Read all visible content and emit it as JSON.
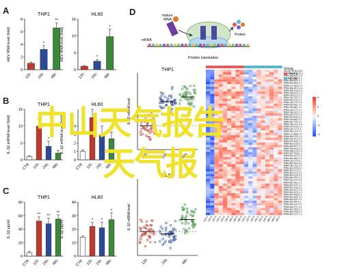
{
  "panels": {
    "A": {
      "letter": "A"
    },
    "B": {
      "letter": "B"
    },
    "C": {
      "letter": "C"
    },
    "D": {
      "letter": "D"
    }
  },
  "overlay": {
    "line1": "中山天气报告",
    "line2": "天气报"
  },
  "chart_data": [
    {
      "type": "bar",
      "panel": "A",
      "title": "THP1",
      "ylabel": "HEV RNA level (fold)",
      "categories": [
        "12h",
        "24h",
        "48h"
      ],
      "values": [
        1.0,
        3.2,
        6.6
      ],
      "errors": [
        0.2,
        0.6,
        0.8
      ],
      "annotations": [
        "",
        "*",
        "**"
      ],
      "yticks": [
        0,
        2,
        4,
        6,
        8
      ],
      "ylim": [
        0,
        8
      ],
      "colors": [
        "#c0392b",
        "#2c4a9b",
        "#3a8a3a"
      ]
    },
    {
      "type": "bar",
      "panel": "A",
      "title": "HL60",
      "ylabel": "HEV RNA level (fold)",
      "categories": [
        "12h",
        "24h",
        "48h"
      ],
      "values": [
        1.0,
        2.5,
        9.8
      ],
      "errors": [
        0.2,
        0.5,
        2.2
      ],
      "annotations": [
        "",
        "*",
        "*"
      ],
      "yticks": [
        0,
        5,
        10,
        15
      ],
      "ylim": [
        0,
        15
      ],
      "colors": [
        "#c0392b",
        "#2c4a9b",
        "#3a8a3a"
      ]
    },
    {
      "type": "bar",
      "panel": "B",
      "title": "THP1",
      "ylabel": "IL-1β mRNA level (fold)",
      "categories": [
        "CTR",
        "12h",
        "24h",
        "48h"
      ],
      "values": [
        1.0,
        10.0,
        4.0,
        2.0
      ],
      "errors": [
        0.2,
        2.0,
        1.5,
        0.8
      ],
      "annotations": [
        "",
        "*",
        "*",
        ""
      ],
      "yticks": [
        0,
        5,
        10,
        15
      ],
      "ylim": [
        0,
        15
      ],
      "colors": [
        "#ffffff",
        "#c0392b",
        "#2c4a9b",
        "#3a8a3a"
      ]
    },
    {
      "type": "bar",
      "panel": "B",
      "title": "HL60",
      "ylabel": "IL-1β mRNA level (fold)",
      "categories": [
        "CTR",
        "12h",
        "24h",
        "48h"
      ],
      "values": [
        1.0,
        5.0,
        3.0,
        2.5
      ],
      "errors": [
        0.2,
        1.0,
        1.0,
        0.8
      ],
      "annotations": [
        "",
        "",
        "",
        ""
      ],
      "yticks": [
        0,
        1,
        2,
        3,
        4
      ],
      "ylim": [
        0,
        6
      ],
      "colors": [
        "#ffffff",
        "#c0392b",
        "#2c4a9b",
        "#3a8a3a"
      ]
    },
    {
      "type": "bar",
      "panel": "C",
      "title": "THP1",
      "ylabel": "IL-1β pg/ml",
      "categories": [
        "CTR",
        "12h",
        "24h",
        "48h"
      ],
      "values": [
        5,
        52,
        48,
        55
      ],
      "errors": [
        2,
        6,
        8,
        6
      ],
      "annotations": [
        "",
        "**",
        "**",
        "**"
      ],
      "yticks": [
        0,
        20,
        40,
        60,
        80
      ],
      "ylim": [
        0,
        80
      ],
      "colors": [
        "#ffffff",
        "#c0392b",
        "#2c4a9b",
        "#3a8a3a"
      ]
    },
    {
      "type": "bar",
      "panel": "C",
      "title": "HL60",
      "ylabel": "IL-1β pg/ml",
      "categories": [
        "CTR",
        "12h",
        "24h",
        "48h"
      ],
      "values": [
        14,
        22,
        21,
        27
      ],
      "errors": [
        1,
        3,
        4,
        5
      ],
      "annotations": [
        "",
        "*",
        "*",
        "*"
      ],
      "yticks": [
        0,
        10,
        20,
        30,
        40
      ],
      "ylim": [
        0,
        40
      ],
      "colors": [
        "#ffffff",
        "#c0392b",
        "#2c4a9b",
        "#3a8a3a"
      ]
    },
    {
      "type": "scatter",
      "panel": "D",
      "title": "THP1",
      "ylabel": "IL-1β mRNA level",
      "categories": [
        "12h",
        "24h",
        "48h"
      ],
      "medians": [
        1.0,
        2.0,
        2.2
      ],
      "colors": [
        "#c0392b",
        "#2c4a9b",
        "#3a8a3a"
      ]
    },
    {
      "type": "scatter",
      "panel": "D",
      "title": "HL60",
      "ylabel": "IL-1β mRNA level",
      "categories": [
        "12h",
        "24h",
        "48h"
      ],
      "medians": [
        1.0,
        0.9,
        1.5
      ],
      "colors": [
        "#c0392b",
        "#2c4a9b",
        "#3a8a3a"
      ]
    },
    {
      "type": "heatmap",
      "panel": "D",
      "legend_title": "Group",
      "groups": [
        "THP-1",
        "HL-60"
      ],
      "group_colors": [
        "#e05b5b",
        "#5bb5c8"
      ],
      "scale_ticks": [
        "4",
        "2",
        "0",
        "-2",
        "-4"
      ],
      "row_labels": [
        "hsa-mir-95-5p-GGC",
        "tRNA-Ala-GCA-14-1",
        "tRNA-Arg-ACG-1-2",
        "tRNA-Ala-CAG-1-1",
        "tRNA-Ala-AGC-1-1",
        "tRNA-Ala-AAG-1-1",
        "tRNA-Leu-GCG-1-1",
        "tRNA-Asp-GCC-1-1",
        "tRNA-Asp-TCG-1-1",
        "tRNA-Gly-GCC-2-1",
        "tRNA-Gly-CCC-1-1",
        "tRNA-Gly-TCC-1-1",
        "tRNA-Ala-CTC-1-1",
        "tRNA-Glu-CTG-1-1",
        "tRNA-Val-CAC-1-1",
        "tRNA-Val-AAC-1-1",
        "tRNA-Lys-CTT-1-1",
        "tRNA-Gly-GCC-1-1",
        "tRNA-His-GTG-1-1",
        "tRNA-Ala-ACG-1-1",
        "tRNA-Val-AAC-2-1",
        "tRNA-Glu-TTC-1-1",
        "tRNA-Gly-CCC-2-1",
        "tRNA-Gln-CTG-1-1",
        "tRNA-Lys-TTT-1-1",
        "tRNA-Glu-CTC-1-1",
        "tRNA-Leu-AAG-1-1",
        "tRNA-Ala-CGC-1-1",
        "tRNA-Gly-TCC-2-1",
        "tRNA-Pro-AGG-1-1",
        "tRNA-Ala-CCA-1-1",
        "tRNA-Ala-GCT-1-1",
        "tRNA-Gly-GCC-3-1",
        "tRNA-Arg-CCG-1-1",
        "tRNA-Ser-TGA-1-1",
        "tRNA-Ser-GCT-1-1",
        "tRNA-Ala-GAC-1-1",
        "tRNA-Lys-CTT-2-1",
        "tRNA-Ala-CAG-2-1",
        "tRNA-Glu-CTC-2-1",
        "tRNA-Ala-CGG-1-1",
        "tRNA-Ala-CTT-1-1",
        "tRNA-Ala-CCC-1-1",
        "tRNA-Ala-CCA-2-1",
        "tRNA-Ala-GTG-1-1",
        "tRNA-Glu-CTC-3-1",
        "tRNA-Ala-TGC-1-1",
        "tRNA-Ala-CGT-1-1",
        "tRNA-Ala-CTG-1-1",
        "tRNA-Ala-GCC-1-1",
        "tRNA-Ala-GCG-1-1",
        "tRNA-Ala-GAA-1-1",
        "tRNA-Ala-GGC-1-1",
        "tRNA-Ala-AGC-2-1",
        "tRNA-Ala-TAT-1-1",
        "tRNA-Ala-CCG-1-1",
        "tRNA-Ala-GTC-1-1",
        "tRNA-Ala-TGG-1-1",
        "tRNA-Ala-CGA-1-1",
        "tRNA-Ala-CCT-1-1"
      ],
      "col_labels": [
        "12h-1",
        "12h-2",
        "12h-3",
        "24h-1",
        "24h-2",
        "24h-3",
        "48h-1",
        "48h-2",
        "48h-3",
        "12h-1",
        "12h-2",
        "12h-3",
        "24h-1",
        "24h-2",
        "24h-3",
        "48h-1",
        "48h-2",
        "48h-3"
      ]
    }
  ],
  "schematic": {
    "labels": {
      "trna": "mature\ntRNA",
      "mrna": "mRNA",
      "protein": "Protein",
      "process": "Protein translation"
    }
  }
}
